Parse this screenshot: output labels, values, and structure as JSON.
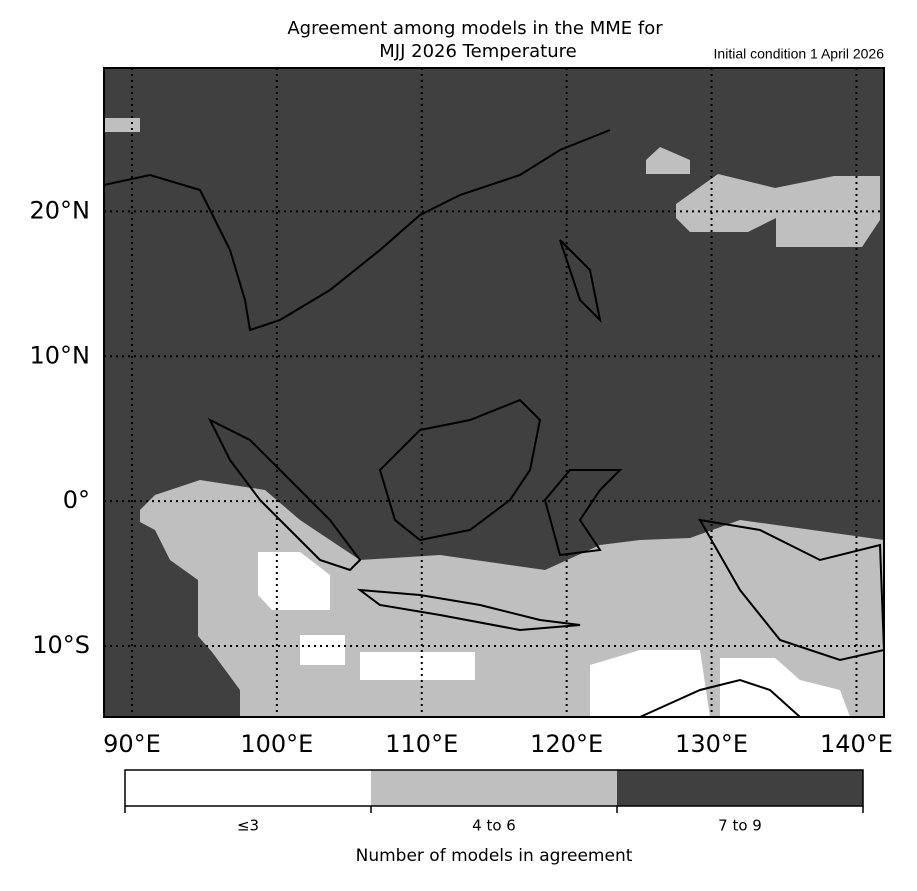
{
  "title": [
    "Agreement among models in the MME for",
    "MJJ 2026  Temperature"
  ],
  "subtitle": "Initial condition 1 April 2026",
  "map": {
    "xlim": [
      88.07,
      141.9
    ],
    "ylim": [
      -14.9,
      29.9
    ],
    "xticks": [
      {
        "value": 90,
        "label": "90°E"
      },
      {
        "value": 100,
        "label": "100°E"
      },
      {
        "value": 110,
        "label": "110°E"
      },
      {
        "value": 120,
        "label": "120°E"
      },
      {
        "value": 130,
        "label": "130°E"
      },
      {
        "value": 140,
        "label": "140°E"
      }
    ],
    "yticks": [
      {
        "value": 20,
        "label": "20°N"
      },
      {
        "value": 10,
        "label": "10°N"
      },
      {
        "value": 0,
        "label": "0°"
      },
      {
        "value": -10,
        "label": "10°S"
      }
    ],
    "grid": true
  },
  "colorbar": {
    "title": "Number of models in agreement",
    "classes": [
      {
        "label": "≤3",
        "color": "#ffffff"
      },
      {
        "label": "4 to 6",
        "color": "#bfbfbf"
      },
      {
        "label": "7 to 9",
        "color": "#404040"
      }
    ]
  }
}
